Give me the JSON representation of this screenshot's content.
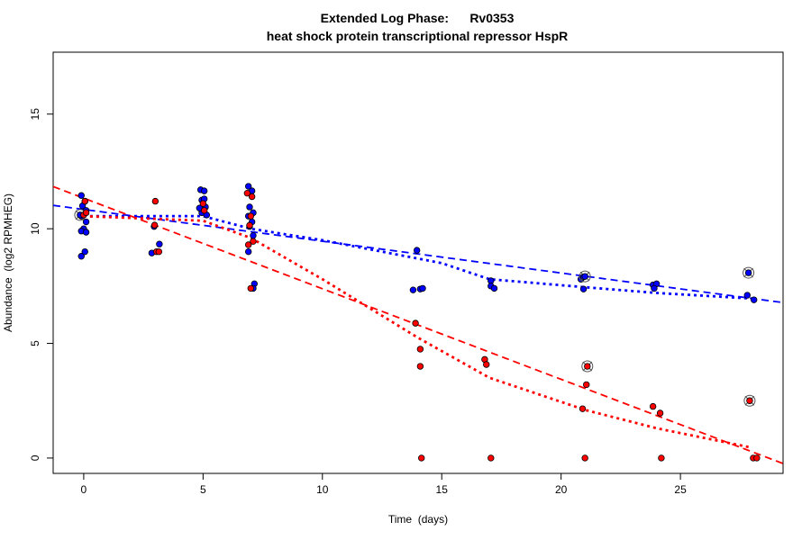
{
  "chart_data": {
    "type": "scatter",
    "title": "Extended Log Phase:      Rv0353",
    "subtitle": "heat shock protein transcriptional repressor HspR",
    "xlabel": "Time  (days)",
    "ylabel": "Abundance  (log2 RPMHEG)",
    "xlim": [
      -1.28,
      29.3
    ],
    "ylim": [
      -0.67,
      17.7
    ],
    "xticks": [
      0,
      5,
      10,
      15,
      20,
      25
    ],
    "yticks": [
      0,
      5,
      10,
      15
    ],
    "grid": false,
    "colors": {
      "blue": "#0000ff",
      "red": "#ff0000"
    },
    "series": [
      {
        "color": "#0000ff",
        "points": [
          [
            -0.1,
            11.45
          ],
          [
            0.05,
            11.2
          ],
          [
            -0.05,
            11.0
          ],
          [
            0.1,
            10.8
          ],
          [
            -0.1,
            10.55
          ],
          [
            0.1,
            10.3
          ],
          [
            0.0,
            10.0
          ],
          [
            -0.1,
            9.9
          ],
          [
            0.1,
            9.85
          ],
          [
            0.05,
            9.0
          ],
          [
            -0.1,
            8.8
          ],
          [
            2.85,
            8.94
          ],
          [
            3.17,
            9.33
          ],
          [
            2.95,
            10.1
          ],
          [
            4.9,
            11.7
          ],
          [
            5.05,
            11.65
          ],
          [
            4.95,
            11.25
          ],
          [
            5.1,
            10.95
          ],
          [
            4.95,
            10.7
          ],
          [
            5.15,
            10.6
          ],
          [
            5.05,
            11.3
          ],
          [
            4.85,
            10.9
          ],
          [
            6.9,
            11.85
          ],
          [
            7.05,
            11.65
          ],
          [
            6.95,
            10.95
          ],
          [
            7.1,
            10.7
          ],
          [
            6.9,
            10.55
          ],
          [
            7.05,
            10.3
          ],
          [
            6.95,
            10.1
          ],
          [
            7.1,
            9.7
          ],
          [
            6.9,
            9.0
          ],
          [
            7.15,
            7.6
          ],
          [
            7.1,
            7.4
          ],
          [
            13.96,
            9.06
          ],
          [
            13.8,
            7.33
          ],
          [
            14.1,
            7.37
          ],
          [
            14.2,
            7.4
          ],
          [
            17.06,
            7.73
          ],
          [
            17.06,
            7.5
          ],
          [
            17.2,
            7.4
          ],
          [
            20.83,
            7.8
          ],
          [
            20.94,
            7.9
          ],
          [
            20.94,
            7.37
          ],
          [
            23.85,
            7.55
          ],
          [
            24.0,
            7.6
          ],
          [
            23.9,
            7.4
          ],
          [
            27.8,
            7.1
          ],
          [
            28.08,
            6.9
          ]
        ],
        "highlighted": [
          [
            -0.15,
            10.6
          ],
          [
            21.0,
            7.92
          ],
          [
            27.85,
            8.08
          ]
        ],
        "linear_fit": [
          [
            -1.28,
            11.02
          ],
          [
            29.3,
            6.78
          ]
        ],
        "smooth_fit": [
          [
            0,
            10.55
          ],
          [
            5,
            10.55
          ],
          [
            7,
            10.0
          ],
          [
            10,
            9.5
          ],
          [
            15,
            8.5
          ],
          [
            17,
            7.8
          ],
          [
            21,
            7.45
          ],
          [
            24,
            7.2
          ],
          [
            28.1,
            6.95
          ]
        ]
      },
      {
        "color": "#ff0000",
        "points": [
          [
            0.0,
            10.6
          ],
          [
            0.1,
            10.7
          ],
          [
            0.05,
            11.2
          ],
          [
            3.0,
            11.2
          ],
          [
            2.97,
            10.16
          ],
          [
            3.05,
            9.0
          ],
          [
            3.15,
            9.0
          ],
          [
            5.0,
            11.1
          ],
          [
            5.05,
            10.8
          ],
          [
            6.85,
            11.55
          ],
          [
            7.05,
            11.4
          ],
          [
            7.0,
            10.55
          ],
          [
            6.95,
            10.15
          ],
          [
            7.1,
            9.45
          ],
          [
            6.9,
            9.3
          ],
          [
            7.0,
            7.4
          ],
          [
            13.9,
            5.88
          ],
          [
            14.1,
            4.75
          ],
          [
            14.1,
            4.0
          ],
          [
            14.15,
            0
          ],
          [
            16.8,
            4.3
          ],
          [
            16.87,
            4.08
          ],
          [
            17.06,
            0
          ],
          [
            21.06,
            3.2
          ],
          [
            20.9,
            2.15
          ],
          [
            21.0,
            0
          ],
          [
            23.85,
            2.25
          ],
          [
            24.15,
            1.96
          ],
          [
            24.2,
            0
          ],
          [
            28.05,
            0
          ],
          [
            28.2,
            0
          ]
        ],
        "highlighted": [
          [
            21.1,
            4.0
          ],
          [
            27.9,
            2.5
          ]
        ],
        "linear_fit": [
          [
            -1.28,
            11.84
          ],
          [
            29.3,
            -0.24
          ]
        ],
        "smooth_fit": [
          [
            0,
            10.55
          ],
          [
            5,
            10.35
          ],
          [
            7,
            9.6
          ],
          [
            10,
            7.8
          ],
          [
            14,
            5.25
          ],
          [
            17,
            3.5
          ],
          [
            21,
            2.1
          ],
          [
            24,
            1.3
          ],
          [
            28,
            0.45
          ]
        ]
      }
    ]
  }
}
